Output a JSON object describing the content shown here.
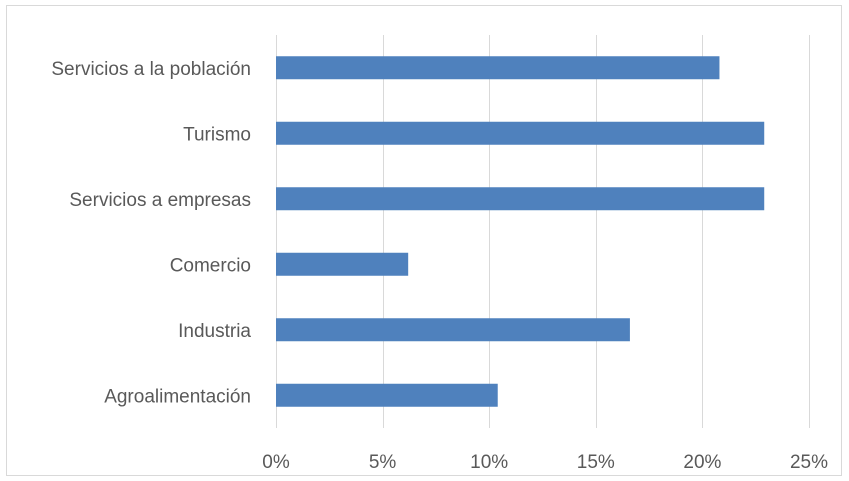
{
  "chart_data": {
    "type": "bar",
    "orientation": "horizontal",
    "categories": [
      "Servicios a la población",
      "Turismo",
      "Servicios a empresas",
      "Comercio",
      "Industria",
      "Agroalimentación"
    ],
    "values": [
      20.8,
      22.9,
      22.9,
      6.2,
      16.6,
      10.4
    ],
    "unit": "%",
    "xlim": [
      0,
      25
    ],
    "xticks": [
      0,
      5,
      10,
      15,
      20,
      25
    ],
    "xtick_labels": [
      "0%",
      "5%",
      "10%",
      "15%",
      "20%",
      "25%"
    ],
    "grid": "vertical",
    "legend": "none",
    "colors": {
      "bar": "#4f81bd",
      "grid": "#d9d9d9",
      "text": "#595959"
    }
  }
}
